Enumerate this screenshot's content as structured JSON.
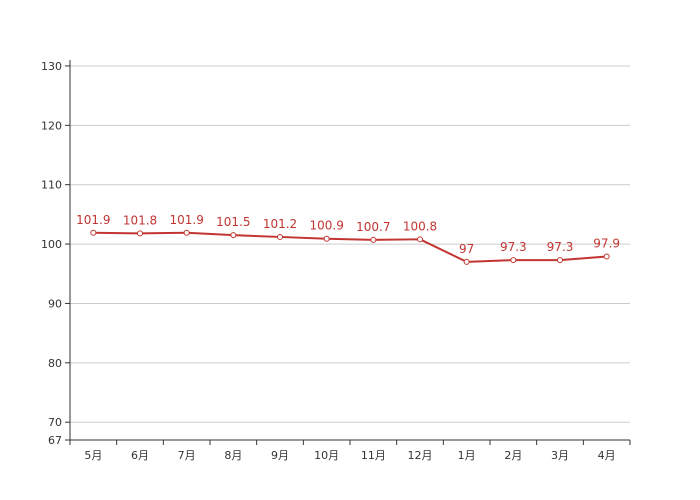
{
  "chart_data": {
    "type": "line",
    "title": "",
    "xlabel": "",
    "ylabel": "",
    "categories": [
      "5月",
      "6月",
      "7月",
      "8月",
      "9月",
      "10月",
      "11月",
      "12月",
      "1月",
      "2月",
      "3月",
      "4月"
    ],
    "series": [
      {
        "values": [
          101.9,
          101.8,
          101.9,
          101.5,
          101.2,
          100.9,
          100.7,
          100.8,
          97,
          97.3,
          97.3,
          97.9
        ],
        "color": "#c23531"
      }
    ],
    "data_labels": [
      "101.9",
      "101.8",
      "101.9",
      "101.5",
      "101.2",
      "100.9",
      "100.7",
      "100.8",
      "97",
      "97.3",
      "97.3",
      "97.9"
    ],
    "ylim": [
      67,
      131
    ],
    "y_ticks": [
      130,
      120,
      110,
      100,
      90,
      80,
      70,
      67
    ],
    "y_tick_labels": [
      "130",
      "120",
      "110",
      "100",
      "90",
      "80",
      "70",
      "67"
    ],
    "grid": true,
    "legend": "none"
  }
}
